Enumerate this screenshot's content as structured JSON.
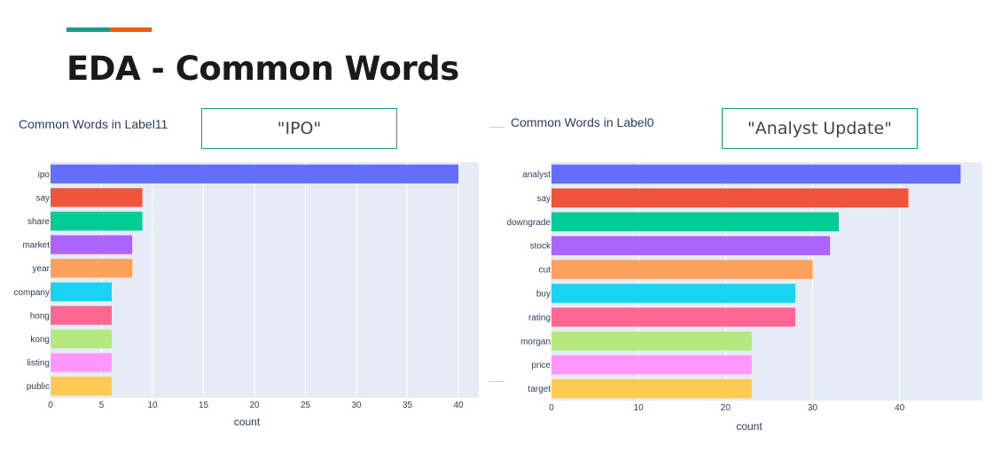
{
  "slide": {
    "title": "EDA - Common Words",
    "accent_colors": [
      "#1a9a8a",
      "#f05a12"
    ]
  },
  "left_label_box": "\"IPO\"",
  "right_label_box": "\"Analyst Update\"",
  "chart_data": [
    {
      "type": "bar",
      "orientation": "horizontal",
      "title": "Common Words in Label11",
      "xlabel": "count",
      "ylabel": "",
      "categories": [
        "ipo",
        "say",
        "share",
        "market",
        "year",
        "company",
        "hong",
        "kong",
        "listing",
        "public"
      ],
      "values": [
        40,
        9,
        9,
        8,
        8,
        6,
        6,
        6,
        6,
        6
      ],
      "colors": [
        "#636efa",
        "#ef553b",
        "#00cc96",
        "#ab63fa",
        "#ffa15a",
        "#19d3f3",
        "#ff6692",
        "#b6e880",
        "#ff97ff",
        "#fecb52"
      ],
      "xlim": [
        0,
        42
      ],
      "xticks": [
        0,
        5,
        10,
        15,
        20,
        25,
        30,
        35,
        40
      ],
      "background": "#e5ecf6",
      "grid": true
    },
    {
      "type": "bar",
      "orientation": "horizontal",
      "title": "Common Words in Label0",
      "xlabel": "count",
      "ylabel": "",
      "categories": [
        "analyst",
        "say",
        "downgrade",
        "stock",
        "cut",
        "buy",
        "rating",
        "morgan",
        "price",
        "target"
      ],
      "values": [
        47,
        41,
        33,
        32,
        30,
        28,
        28,
        23,
        23,
        23
      ],
      "colors": [
        "#636efa",
        "#ef553b",
        "#00cc96",
        "#ab63fa",
        "#ffa15a",
        "#19d3f3",
        "#ff6692",
        "#b6e880",
        "#ff97ff",
        "#fecb52"
      ],
      "xlim": [
        0,
        49.5
      ],
      "xticks": [
        0,
        10,
        20,
        30,
        40
      ],
      "background": "#e5ecf6",
      "grid": true
    }
  ]
}
